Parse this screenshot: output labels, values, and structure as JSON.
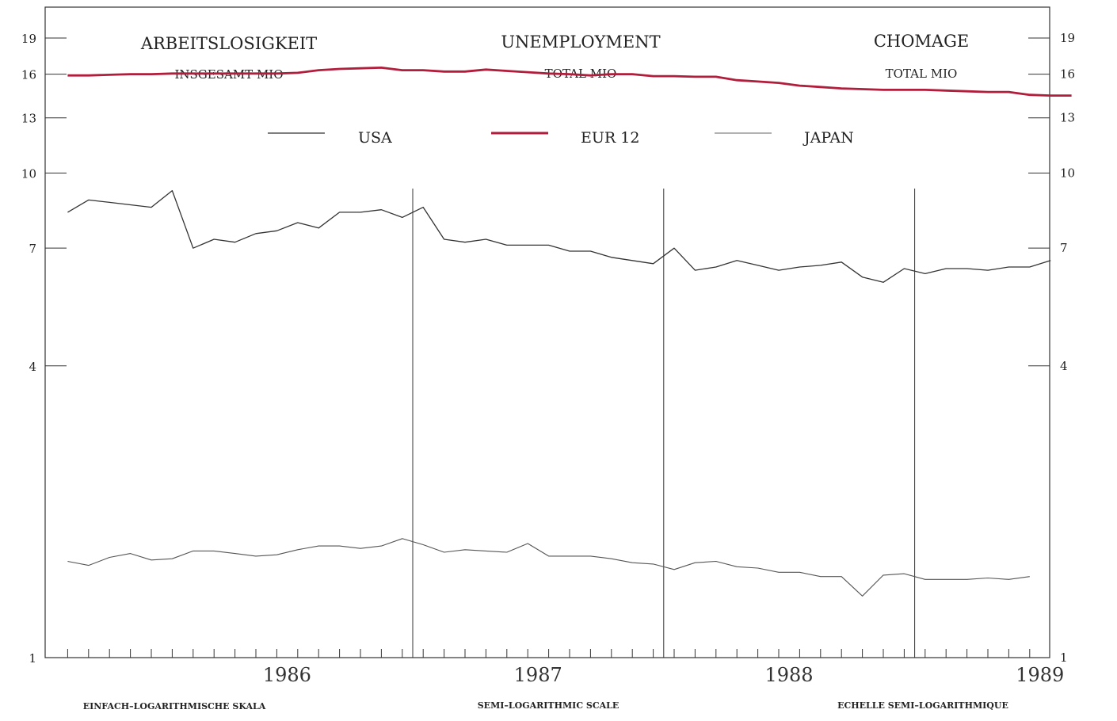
{
  "header": {
    "de_title": "ARBEITSLOSIGKEIT",
    "de_sub": "INSGESAMT MIO",
    "en_title": "UNEMPLOYMENT",
    "en_sub": "TOTAL MIO",
    "fr_title": "CHOMAGE",
    "fr_sub": "TOTAL MIO"
  },
  "footer": {
    "de": "EINFACH–LOGARITHMISCHE SKALA",
    "en": "SEMI–LOGARITHMIC SCALE",
    "fr": "ECHELLE SEMI–LOGARITHMIQUE"
  },
  "chart_data": {
    "type": "line",
    "y_scale": "log",
    "ylim": [
      1,
      22
    ],
    "y_ticks": [
      1,
      4,
      7,
      10,
      13,
      16,
      19
    ],
    "y_tick_labels": [
      "1",
      "4",
      "7",
      "10",
      "13",
      "16",
      "19"
    ],
    "x_unit": "month",
    "x_range": [
      "1985-07",
      "1989-12"
    ],
    "year_labels": [
      "1986",
      "1987",
      "1988",
      "1989"
    ],
    "year_dividers": [
      "1986-12",
      "1987-12",
      "1988-12"
    ],
    "grid": false,
    "legend_position": "top",
    "series": [
      {
        "name": "USA",
        "color": "#333333",
        "start": "1985-08",
        "values": [
          8.3,
          8.8,
          8.7,
          8.6,
          8.5,
          9.2,
          7.0,
          7.3,
          7.2,
          7.5,
          7.6,
          7.9,
          7.7,
          8.3,
          8.3,
          8.4,
          8.1,
          8.5,
          7.3,
          7.2,
          7.3,
          7.1,
          7.1,
          7.1,
          6.9,
          6.9,
          6.7,
          6.6,
          6.5,
          7.0,
          6.3,
          6.4,
          6.6,
          6.45,
          6.3,
          6.4,
          6.45,
          6.55,
          6.1,
          5.95,
          6.35,
          6.2,
          6.35,
          6.35,
          6.3,
          6.4,
          6.4,
          6.6
        ]
      },
      {
        "name": "EUR 12",
        "color": "#b01e3c",
        "start": "1985-08",
        "values": [
          15.9,
          15.9,
          15.95,
          16.0,
          16.0,
          16.05,
          16.05,
          16.05,
          16.05,
          16.05,
          16.05,
          16.1,
          16.3,
          16.4,
          16.45,
          16.5,
          16.3,
          16.3,
          16.2,
          16.2,
          16.35,
          16.25,
          16.15,
          16.05,
          16.0,
          15.9,
          16.0,
          16.0,
          15.85,
          15.85,
          15.8,
          15.8,
          15.55,
          15.45,
          15.35,
          15.15,
          15.05,
          14.95,
          14.9,
          14.85,
          14.85,
          14.85,
          14.8,
          14.75,
          14.7,
          14.7,
          14.5,
          14.45,
          14.45
        ]
      },
      {
        "name": "JAPAN",
        "color": "#555555",
        "start": "1985-08",
        "values": [
          1.58,
          1.55,
          1.61,
          1.64,
          1.59,
          1.6,
          1.66,
          1.66,
          1.64,
          1.62,
          1.63,
          1.67,
          1.7,
          1.7,
          1.68,
          1.7,
          1.76,
          1.71,
          1.65,
          1.67,
          1.66,
          1.65,
          1.72,
          1.62,
          1.62,
          1.62,
          1.6,
          1.57,
          1.56,
          1.52,
          1.57,
          1.58,
          1.54,
          1.53,
          1.5,
          1.5,
          1.47,
          1.47,
          1.34,
          1.48,
          1.49,
          1.45,
          1.45,
          1.45,
          1.46,
          1.45,
          1.47
        ]
      }
    ]
  }
}
